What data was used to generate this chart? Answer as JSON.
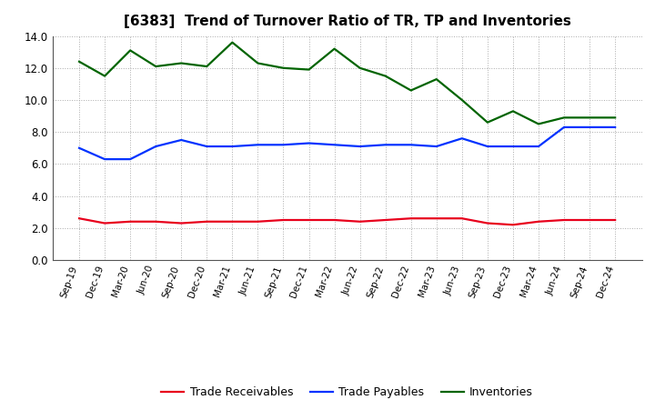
{
  "title": "[6383]  Trend of Turnover Ratio of TR, TP and Inventories",
  "x_labels": [
    "Sep-19",
    "Dec-19",
    "Mar-20",
    "Jun-20",
    "Sep-20",
    "Dec-20",
    "Mar-21",
    "Jun-21",
    "Sep-21",
    "Dec-21",
    "Mar-22",
    "Jun-22",
    "Sep-22",
    "Dec-22",
    "Mar-23",
    "Jun-23",
    "Sep-23",
    "Dec-23",
    "Mar-24",
    "Jun-24",
    "Sep-24",
    "Dec-24"
  ],
  "trade_receivables": [
    2.6,
    2.3,
    2.4,
    2.4,
    2.3,
    2.4,
    2.4,
    2.4,
    2.5,
    2.5,
    2.5,
    2.4,
    2.5,
    2.6,
    2.6,
    2.6,
    2.3,
    2.2,
    2.4,
    2.5,
    2.5,
    2.5
  ],
  "trade_payables": [
    7.0,
    6.3,
    6.3,
    7.1,
    7.5,
    7.1,
    7.1,
    7.2,
    7.2,
    7.3,
    7.2,
    7.1,
    7.2,
    7.2,
    7.1,
    7.6,
    7.1,
    7.1,
    7.1,
    8.3,
    8.3,
    8.3
  ],
  "inventories": [
    12.4,
    11.5,
    13.1,
    12.1,
    12.3,
    12.1,
    13.6,
    12.3,
    12.0,
    11.9,
    13.2,
    12.0,
    11.5,
    10.6,
    11.3,
    10.0,
    8.6,
    9.3,
    8.5,
    8.9,
    8.9,
    8.9
  ],
  "ylim": [
    0.0,
    14.0
  ],
  "yticks": [
    0.0,
    2.0,
    4.0,
    6.0,
    8.0,
    10.0,
    12.0,
    14.0
  ],
  "color_tr": "#e8001c",
  "color_tp": "#0032ff",
  "color_inv": "#006400",
  "legend_tr": "Trade Receivables",
  "legend_tp": "Trade Payables",
  "legend_inv": "Inventories",
  "bg_color": "#ffffff",
  "plot_bg_color": "#ffffff",
  "grid_color": "#aaaaaa",
  "linewidth": 1.6,
  "title_fontsize": 11,
  "tick_fontsize": 7.5,
  "ytick_fontsize": 8.5,
  "legend_fontsize": 9
}
